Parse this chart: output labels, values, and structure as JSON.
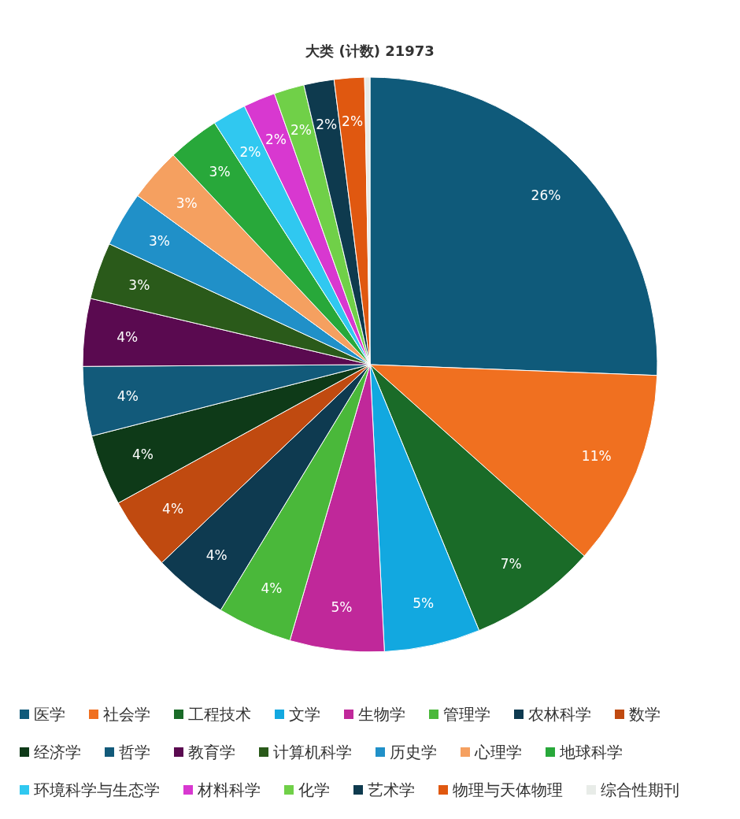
{
  "chart_data": {
    "type": "pie",
    "title": "大类 (计数) 21973",
    "categories": [
      "医学",
      "社会学",
      "工程技术",
      "文学",
      "生物学",
      "管理学",
      "农林科学",
      "数学",
      "经济学",
      "哲学",
      "教育学",
      "计算机科学",
      "历史学",
      "心理学",
      "地球科学",
      "环境科学与生态学",
      "材料科学",
      "化学",
      "艺术学",
      "物理与天体物理",
      "综合性期刊"
    ],
    "values": [
      25.6,
      11.0,
      7.2,
      5.4,
      5.3,
      4.2,
      4.2,
      4.1,
      4.0,
      3.9,
      3.8,
      3.2,
      3.1,
      3.0,
      2.9,
      1.9,
      1.8,
      1.7,
      1.7,
      1.7,
      0.3
    ],
    "value_labels": [
      "26%",
      "11%",
      "7%",
      "5%",
      "5%",
      "4%",
      "4%",
      "4%",
      "4%",
      "4%",
      "4%",
      "3%",
      "3%",
      "3%",
      "3%",
      "2%",
      "2%",
      "2%",
      "2%",
      "2%",
      null
    ],
    "colors": [
      "#0f5a7a",
      "#f07020",
      "#1a6b28",
      "#12a8e0",
      "#c0289a",
      "#4ab83a",
      "#0e3a50",
      "#c04a10",
      "#0e3a18",
      "#125a7a",
      "#5a0a50",
      "#2a5a1a",
      "#2090c8",
      "#f5a060",
      "#28a83a",
      "#30c8f0",
      "#d838d0",
      "#70d048",
      "#0e3a4e",
      "#e05810",
      "#e8ece8"
    ],
    "legend": "bottom"
  }
}
